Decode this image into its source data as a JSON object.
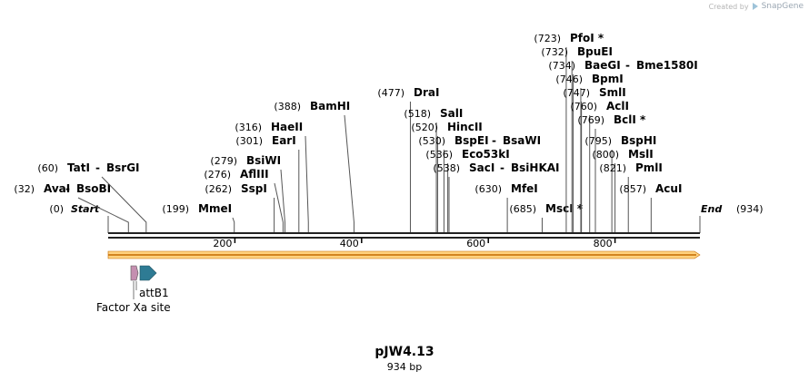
{
  "credit": {
    "prefix": "Created by",
    "brand": "SnapGene",
    "icon": "snapgene-logo-icon"
  },
  "plasmid": {
    "name": "pJW4.13",
    "length_label": "934 bp",
    "length": 934
  },
  "ruler": {
    "ticks": [
      200,
      400,
      600,
      800
    ]
  },
  "end_labels": [
    {
      "name": "Start",
      "pos_label": "(0)",
      "pos": 0
    },
    {
      "name": "End",
      "pos_label": "(934)",
      "pos": 934
    }
  ],
  "enzymes": [
    {
      "name": "AvaI",
      "partner": "BsoBI",
      "pos_label": "(32)",
      "pos": 32
    },
    {
      "name": "TatI",
      "partner": "BsrGI",
      "pos_label": "(60)",
      "pos": 60
    },
    {
      "name": "MmeI",
      "pos_label": "(199)",
      "pos": 199
    },
    {
      "name": "SspI",
      "pos_label": "(262)",
      "pos": 262
    },
    {
      "name": "AflIII",
      "pos_label": "(276)",
      "pos": 276
    },
    {
      "name": "BsiWI",
      "pos_label": "(279)",
      "pos": 279
    },
    {
      "name": "EarI",
      "pos_label": "(301)",
      "pos": 301
    },
    {
      "name": "HaeII",
      "pos_label": "(316)",
      "pos": 316
    },
    {
      "name": "BamHI",
      "pos_label": "(388)",
      "pos": 388
    },
    {
      "name": "DraI",
      "pos_label": "(477)",
      "pos": 477
    },
    {
      "name": "SalI",
      "pos_label": "(518)",
      "pos": 518
    },
    {
      "name": "HincII",
      "pos_label": "(520)",
      "pos": 520
    },
    {
      "name": "BspEI",
      "partner": "BsaWI",
      "pos_label": "(530)",
      "pos": 530
    },
    {
      "name": "Eco53kI",
      "pos_label": "(536)",
      "pos": 536
    },
    {
      "name": "SacI",
      "partner": "BsiHKAI",
      "pos_label": "(538)",
      "pos": 538
    },
    {
      "name": "MfeI",
      "pos_label": "(630)",
      "pos": 630
    },
    {
      "name": "MscI *",
      "pos_label": "(685)",
      "pos": 685
    },
    {
      "name": "PfoI *",
      "pos_label": "(723)",
      "pos": 723
    },
    {
      "name": "BpuEI",
      "pos_label": "(732)",
      "pos": 732
    },
    {
      "name": "BaeGI",
      "partner": "Bme1580I",
      "pos_label": "(734)",
      "pos": 734
    },
    {
      "name": "BpmI",
      "pos_label": "(746)",
      "pos": 746
    },
    {
      "name": "SmlI",
      "pos_label": "(747)",
      "pos": 747
    },
    {
      "name": "AclI",
      "pos_label": "(760)",
      "pos": 760
    },
    {
      "name": "BclI *",
      "pos_label": "(769)",
      "pos": 769
    },
    {
      "name": "BspHI",
      "pos_label": "(795)",
      "pos": 795
    },
    {
      "name": "MslI",
      "pos_label": "(800)",
      "pos": 800
    },
    {
      "name": "PmlI",
      "pos_label": "(821)",
      "pos": 821
    },
    {
      "name": "AcuI",
      "pos_label": "(857)",
      "pos": 857
    }
  ],
  "features": [
    {
      "name": "Factor Xa site",
      "start": 38,
      "end": 49,
      "color": "#c48fb0"
    },
    {
      "name": "attB1",
      "start": 51,
      "end": 76,
      "color": "#2e7b94"
    }
  ],
  "colors": {
    "backbone": "#222222",
    "orf_fill": "#ffd27f",
    "orf_stroke": "#c46a00",
    "cutline": "#555555"
  }
}
